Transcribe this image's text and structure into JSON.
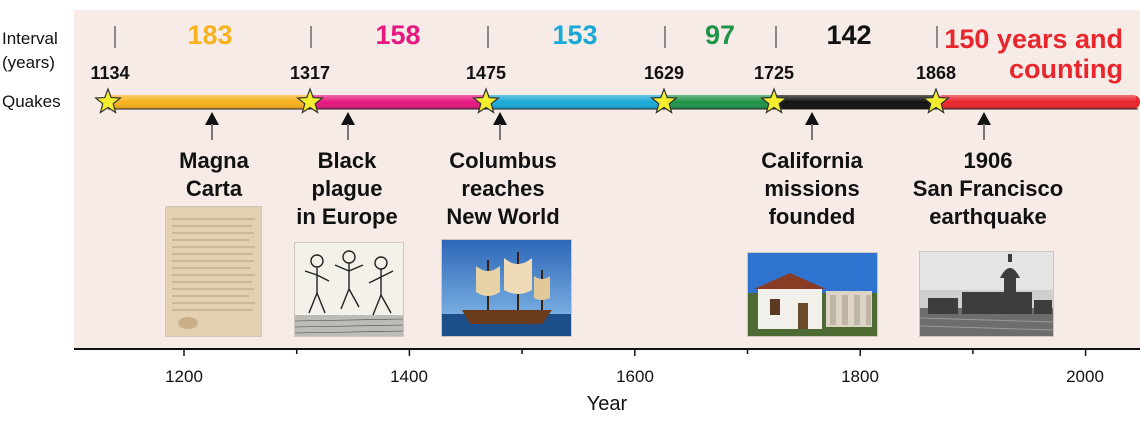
{
  "row_labels": {
    "interval_line1": "Interval",
    "interval_line2": "(years)",
    "quakes": "Quakes"
  },
  "intervals": [
    {
      "text": "183",
      "color": "#f7b21d"
    },
    {
      "text": "158",
      "color": "#e6177f"
    },
    {
      "text": "153",
      "color": "#1aa9d6"
    },
    {
      "text": "97",
      "color": "#1e9447"
    },
    {
      "text": "142",
      "color": "#111111"
    },
    {
      "text": "150 years and\ncounting",
      "color": "#e8262b"
    }
  ],
  "quakes": [
    "1134",
    "1317",
    "1475",
    "1629",
    "1725",
    "1868"
  ],
  "events": [
    {
      "label": "Magna\nCarta",
      "year": 1215,
      "image": "magna-carta-document"
    },
    {
      "label": "Black\nplague\nin Europe",
      "year": 1347,
      "image": "dance-of-death-woodcut"
    },
    {
      "label": "Columbus\nreaches\nNew World",
      "year": 1492,
      "image": "sailing-ship"
    },
    {
      "label": "California\nmissions\nfounded",
      "year": 1769,
      "image": "mission-building"
    },
    {
      "label": "1906\nSan Francisco\nearthquake",
      "year": 1906,
      "image": "ruined-city-hall"
    }
  ],
  "axis": {
    "ticks": [
      "1200",
      "1400",
      "1600",
      "1800",
      "2000"
    ],
    "title": "Year"
  },
  "colors": {
    "segments": [
      "#f7b21d",
      "#e6177f",
      "#1aa9d6",
      "#1e9447",
      "#111111",
      "#e8262b"
    ],
    "star": "#f5ee2e",
    "panel": "#f6ebe7"
  }
}
